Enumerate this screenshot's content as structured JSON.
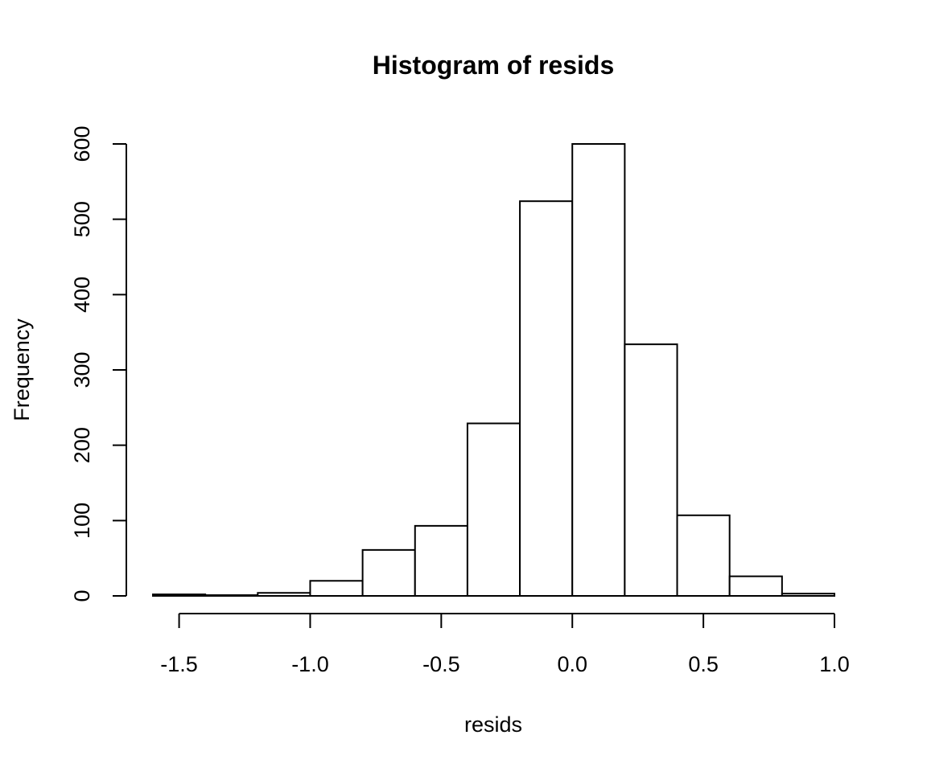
{
  "chart_data": {
    "type": "bar",
    "title": "Histogram of resids",
    "xlabel": "resids",
    "ylabel": "Frequency",
    "bin_edges": [
      -1.6,
      -1.4,
      -1.2,
      -1.0,
      -0.8,
      -0.6,
      -0.4,
      -0.2,
      0.0,
      0.2,
      0.4,
      0.6,
      0.8,
      1.0
    ],
    "counts": [
      2,
      1,
      4,
      20,
      61,
      93,
      229,
      524,
      600,
      334,
      107,
      26,
      3
    ],
    "xlim": [
      -1.6,
      1.0
    ],
    "ylim": [
      0,
      600
    ],
    "x_ticks": [
      -1.5,
      -1.0,
      -0.5,
      0.0,
      0.5,
      1.0
    ],
    "x_tick_labels": [
      "-1.5",
      "-1.0",
      "-0.5",
      "0.0",
      "0.5",
      "1.0"
    ],
    "y_ticks": [
      0,
      100,
      200,
      300,
      400,
      500,
      600
    ],
    "y_tick_labels": [
      "0",
      "100",
      "200",
      "300",
      "400",
      "500",
      "600"
    ],
    "grid": false,
    "bar_fill": "#ffffff",
    "bar_stroke": "#000000"
  }
}
